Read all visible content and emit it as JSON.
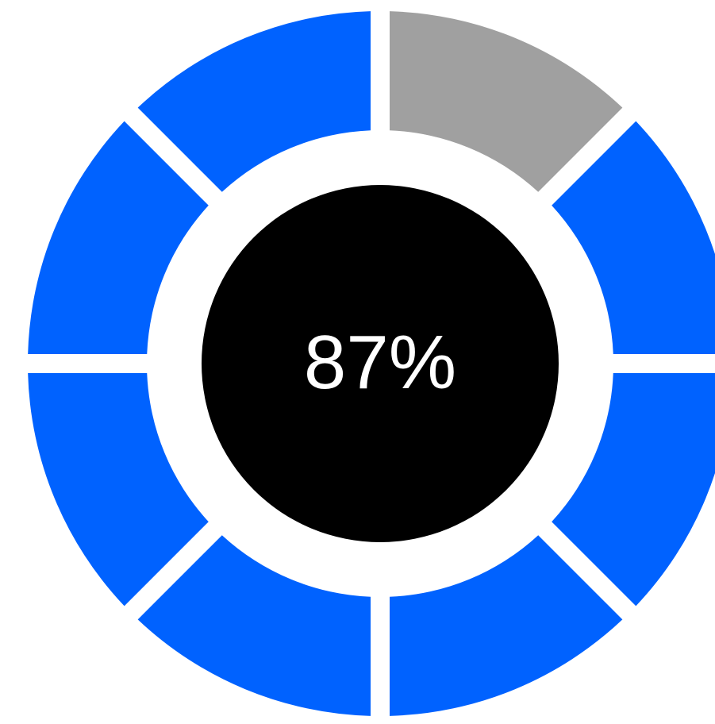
{
  "gauge": {
    "value_label": "87%",
    "percent": 87,
    "segment_count": 8,
    "segments_filled": 7,
    "empty_segment_index": 0,
    "colors": {
      "filled": "#0062ff",
      "empty": "#a0a0a0",
      "center": "#000000",
      "text": "#ffffff",
      "background": "#ffffff"
    }
  }
}
